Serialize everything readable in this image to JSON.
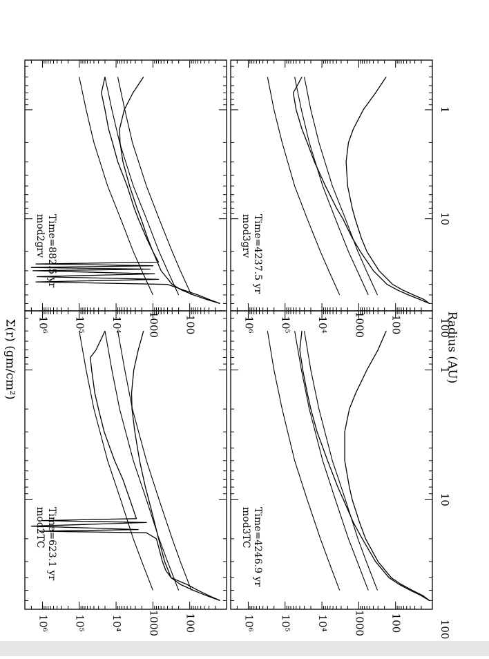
{
  "figure": {
    "xlabel": "Radius (AU)",
    "ylabel": "Σ(r)  (gm/cm²)"
  },
  "chart_data": [
    {
      "type": "line",
      "model": "mod2TC",
      "time": "Time=623.1 yr",
      "xscale": "log",
      "yscale": "log",
      "xlim": [
        0.35,
        70
      ],
      "ylim": [
        10,
        3000000
      ],
      "x_ticks": [
        "1",
        "10",
        "100"
      ],
      "y_ticks": [
        "100",
        "1000",
        "10⁴",
        "10⁵",
        "10⁶"
      ],
      "series": [
        {
          "x": [
            0.5,
            1,
            2,
            5,
            10,
            20,
            30,
            50
          ],
          "values": [
            100000,
            65000,
            40000,
            17000,
            7500,
            3400,
            2000,
            1000
          ]
        },
        {
          "x": [
            0.5,
            1,
            2,
            5,
            10,
            20,
            30,
            50
          ],
          "values": [
            20000,
            13000,
            8000,
            3400,
            1500,
            680,
            400,
            200
          ]
        },
        {
          "x": [
            0.5,
            1,
            2,
            5,
            10,
            20,
            30,
            50
          ],
          "values": [
            9000,
            5800,
            3600,
            1500,
            680,
            300,
            180,
            90
          ]
        },
        {
          "x": [
            0.5,
            0.7,
            0.8,
            1,
            1.5,
            2,
            3,
            5,
            7,
            10,
            14,
            14.5,
            15,
            16,
            17,
            17.5,
            18,
            20,
            25,
            30,
            35,
            40,
            45,
            50,
            55,
            60
          ],
          "values": [
            20000,
            35000,
            50000,
            46000,
            38000,
            30000,
            21000,
            11000,
            6500,
            4200,
            2800,
            1000000,
            1500,
            2000000,
            2500,
            1200000,
            1500,
            800,
            650,
            550,
            450,
            320,
            120,
            60,
            30,
            15
          ]
        },
        {
          "x": [
            0.5,
            0.7,
            1,
            1.5,
            2,
            3,
            5,
            8,
            10,
            15,
            20,
            30,
            40,
            45,
            50,
            55,
            60
          ],
          "values": [
            1800,
            2500,
            3300,
            3800,
            3700,
            3100,
            2300,
            1600,
            1300,
            900,
            700,
            480,
            320,
            180,
            80,
            35,
            15
          ]
        }
      ]
    },
    {
      "type": "line",
      "model": "mod2grv",
      "time": "Time=882.5 yr",
      "xscale": "log",
      "yscale": "log",
      "xlim": [
        0.35,
        70
      ],
      "ylim": [
        10,
        3000000
      ],
      "x_ticks": [
        "1",
        "10",
        "100"
      ],
      "y_ticks": [
        "100",
        "1000",
        "10⁴",
        "10⁵",
        "10⁶"
      ],
      "series": [
        {
          "x": [
            0.5,
            1,
            2,
            5,
            10,
            20,
            30,
            50
          ],
          "values": [
            100000,
            65000,
            40000,
            17000,
            7500,
            3400,
            2000,
            1000
          ]
        },
        {
          "x": [
            0.5,
            1,
            2,
            5,
            10,
            20,
            30,
            50
          ],
          "values": [
            20000,
            13000,
            8000,
            3400,
            1500,
            680,
            400,
            200
          ]
        },
        {
          "x": [
            0.5,
            1,
            2,
            5,
            10,
            20,
            30,
            50
          ],
          "values": [
            9000,
            5800,
            3600,
            1500,
            680,
            300,
            180,
            90
          ]
        },
        {
          "x": [
            0.5,
            0.7,
            1,
            1.5,
            2,
            3,
            5,
            8,
            10,
            15,
            20,
            25,
            26,
            27,
            28,
            29,
            30,
            32,
            34,
            36,
            38,
            40,
            45,
            50,
            55,
            60
          ],
          "values": [
            20000,
            25000,
            20000,
            16000,
            12500,
            9000,
            5000,
            3200,
            2500,
            1500,
            1000,
            700,
            1500000,
            1000,
            2000000,
            1200,
            1800000,
            900,
            1400000,
            700,
            1500000,
            400,
            150,
            60,
            30,
            15
          ]
        },
        {
          "x": [
            0.5,
            0.7,
            1,
            1.5,
            2,
            3,
            5,
            8,
            10,
            15,
            20,
            30,
            40,
            45,
            50,
            55,
            60
          ],
          "values": [
            1800,
            3500,
            6000,
            8000,
            7800,
            6500,
            4300,
            2700,
            2100,
            1400,
            1000,
            600,
            300,
            170,
            80,
            35,
            15
          ]
        }
      ]
    },
    {
      "type": "line",
      "model": "mod3TC",
      "time": "Time=4246.9 yr",
      "xscale": "log",
      "yscale": "log",
      "xlim": [
        0.35,
        70
      ],
      "ylim": [
        10,
        3000000
      ],
      "x_ticks": [
        "1",
        "10",
        "100"
      ],
      "y_ticks": [
        "100",
        "1000",
        "10⁴",
        "10⁵",
        "10⁶"
      ],
      "series": [
        {
          "x": [
            0.5,
            1,
            2,
            5,
            10,
            20,
            30,
            50
          ],
          "values": [
            300000,
            200000,
            120000,
            55000,
            25000,
            11000,
            6500,
            3300
          ]
        },
        {
          "x": [
            0.5,
            1,
            2,
            5,
            10,
            20,
            30,
            50
          ],
          "values": [
            55000,
            36000,
            22000,
            9500,
            4300,
            1900,
            1100,
            550
          ]
        },
        {
          "x": [
            0.5,
            1,
            2,
            5,
            10,
            20,
            30,
            50
          ],
          "values": [
            30000,
            20000,
            12000,
            5200,
            2300,
            1050,
            620,
            310
          ]
        },
        {
          "x": [
            0.5,
            0.7,
            1,
            1.5,
            2,
            3,
            5,
            8,
            10,
            15,
            20,
            30,
            40,
            45,
            50,
            55,
            60
          ],
          "values": [
            35000,
            40000,
            33000,
            25000,
            20000,
            13500,
            7000,
            3700,
            2600,
            1400,
            800,
            350,
            150,
            80,
            40,
            20,
            12
          ]
        },
        {
          "x": [
            0.5,
            0.7,
            1,
            1.5,
            2,
            3,
            5,
            8,
            10,
            15,
            20,
            30,
            40,
            45,
            50,
            55,
            60
          ],
          "values": [
            180,
            300,
            600,
            1200,
            1800,
            2400,
            2400,
            1800,
            1500,
            950,
            650,
            300,
            130,
            70,
            35,
            18,
            12
          ]
        }
      ]
    },
    {
      "type": "line",
      "model": "mod3grv",
      "time": "Time=4237.5 yr",
      "xscale": "log",
      "yscale": "log",
      "xlim": [
        0.35,
        70
      ],
      "ylim": [
        10,
        3000000
      ],
      "x_ticks": [
        "1",
        "10",
        "100"
      ],
      "y_ticks": [
        "100",
        "1000",
        "10⁴",
        "10⁵",
        "10⁶"
      ],
      "series": [
        {
          "x": [
            0.5,
            1,
            2,
            5,
            10,
            20,
            30,
            50
          ],
          "values": [
            300000,
            200000,
            120000,
            55000,
            25000,
            11000,
            6500,
            3300
          ]
        },
        {
          "x": [
            0.5,
            1,
            2,
            5,
            10,
            20,
            30,
            50
          ],
          "values": [
            55000,
            36000,
            22000,
            9500,
            4300,
            1900,
            1100,
            550
          ]
        },
        {
          "x": [
            0.5,
            1,
            2,
            5,
            10,
            20,
            30,
            50
          ],
          "values": [
            30000,
            20000,
            12000,
            5200,
            2300,
            1050,
            620,
            310
          ]
        },
        {
          "x": [
            0.5,
            0.7,
            1,
            1.5,
            2,
            3,
            5,
            8,
            10,
            15,
            20,
            30,
            40,
            45,
            50,
            55,
            60
          ],
          "values": [
            35000,
            60000,
            50000,
            35000,
            25000,
            16000,
            8000,
            4000,
            2700,
            1500,
            900,
            400,
            170,
            90,
            45,
            22,
            12
          ]
        },
        {
          "x": [
            0.5,
            0.7,
            1,
            1.5,
            2,
            3,
            5,
            8,
            10,
            15,
            20,
            30,
            40,
            45,
            50,
            55,
            60
          ],
          "values": [
            180,
            350,
            750,
            1400,
            1900,
            2200,
            2000,
            1500,
            1250,
            850,
            600,
            280,
            120,
            65,
            33,
            17,
            12
          ]
        }
      ]
    }
  ]
}
